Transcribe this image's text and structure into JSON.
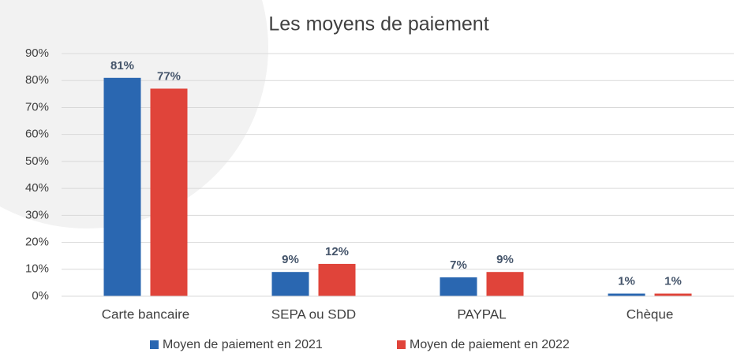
{
  "chart_data": {
    "type": "bar",
    "title": "Les moyens de paiement",
    "categories": [
      "Carte bancaire",
      "SEPA ou SDD",
      "PAYPAL",
      "Chèque"
    ],
    "series": [
      {
        "name": "Moyen de paiement en 2021",
        "color": "#2a67b1",
        "values": [
          81,
          9,
          7,
          1
        ],
        "value_labels": [
          "81%",
          "9%",
          "7%",
          "1%"
        ]
      },
      {
        "name": "Moyen de paiement en 2022",
        "color": "#e0443a",
        "values": [
          77,
          12,
          9,
          1
        ],
        "value_labels": [
          "77%",
          "12%",
          "9%",
          "1%"
        ]
      }
    ],
    "ylim": [
      0,
      90
    ],
    "yticks": [
      {
        "value": 0,
        "label": "0%"
      },
      {
        "value": 10,
        "label": "10%"
      },
      {
        "value": 20,
        "label": "20%"
      },
      {
        "value": 30,
        "label": "30%"
      },
      {
        "value": 40,
        "label": "40%"
      },
      {
        "value": 50,
        "label": "50%"
      },
      {
        "value": 60,
        "label": "60%"
      },
      {
        "value": 70,
        "label": "70%"
      },
      {
        "value": 80,
        "label": "80%"
      },
      {
        "value": 90,
        "label": "90%"
      }
    ],
    "grid": true,
    "legend": "bottom"
  }
}
